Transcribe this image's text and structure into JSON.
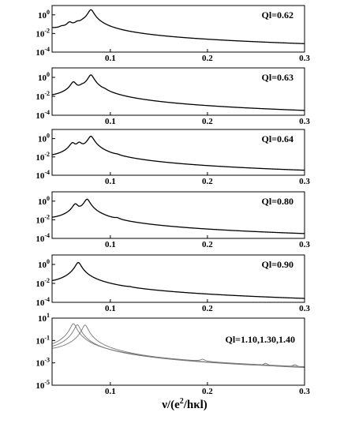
{
  "chart_data": [
    {
      "type": "line",
      "annotation": "Ql=0.62",
      "log_y": true,
      "xlim": [
        0.04,
        0.3
      ],
      "ylim": [
        0.0001,
        10
      ],
      "x_ticks": [
        0.1,
        0.2,
        0.3
      ],
      "x_tick_labels": [
        "0.1",
        "0.2",
        "0.3"
      ],
      "y_ticks": [
        1,
        0.01,
        0.0001
      ],
      "y_tick_labels": [
        [
          "10",
          "0"
        ],
        [
          "10",
          "-2"
        ],
        [
          "10",
          "-4"
        ]
      ],
      "series": [
        {
          "color": "#000000",
          "background": 0.012,
          "peaks": [
            {
              "x": 0.05,
              "height": 0.015
            },
            {
              "x": 0.058,
              "height": 0.11
            },
            {
              "x": 0.066,
              "height": 0.08
            },
            {
              "x": 0.072,
              "height": 0.05
            },
            {
              "x": 0.08,
              "height": 3.5
            }
          ]
        }
      ]
    },
    {
      "type": "line",
      "annotation": "Ql=0.63",
      "log_y": true,
      "xlim": [
        0.04,
        0.3
      ],
      "ylim": [
        0.0001,
        10
      ],
      "x_ticks": [
        0.1,
        0.2,
        0.3
      ],
      "x_tick_labels": [
        "0.1",
        "0.2",
        "0.3"
      ],
      "y_ticks": [
        1,
        0.01,
        0.0001
      ],
      "y_tick_labels": [
        [
          "10",
          "0"
        ],
        [
          "10",
          "-2"
        ],
        [
          "10",
          "-4"
        ]
      ],
      "series": [
        {
          "color": "#000000",
          "background": 0.0012,
          "peaks": [
            {
              "x": 0.062,
              "height": 0.3
            },
            {
              "x": 0.071,
              "height": 0.055
            },
            {
              "x": 0.08,
              "height": 1.8
            },
            {
              "x": 0.094,
              "height": 0.01
            }
          ]
        }
      ]
    },
    {
      "type": "line",
      "annotation": "Ql=0.64",
      "log_y": true,
      "xlim": [
        0.04,
        0.3
      ],
      "ylim": [
        0.0001,
        10
      ],
      "x_ticks": [
        0.1,
        0.2,
        0.3
      ],
      "x_tick_labels": [
        "0.1",
        "0.2",
        "0.3"
      ],
      "y_ticks": [
        1,
        0.01,
        0.0001
      ],
      "y_tick_labels": [
        [
          "10",
          "0"
        ],
        [
          "10",
          "-2"
        ],
        [
          "10",
          "-4"
        ]
      ],
      "series": [
        {
          "color": "#000000",
          "background": 0.0012,
          "peaks": [
            {
              "x": 0.061,
              "height": 0.3
            },
            {
              "x": 0.068,
              "height": 0.3
            },
            {
              "x": 0.08,
              "height": 1.8
            },
            {
              "x": 0.107,
              "height": 0.0025
            }
          ]
        }
      ]
    },
    {
      "type": "line",
      "annotation": "Ql=0.80",
      "log_y": true,
      "xlim": [
        0.04,
        0.3
      ],
      "ylim": [
        0.0001,
        10
      ],
      "x_ticks": [
        0.1,
        0.2,
        0.3
      ],
      "x_tick_labels": [
        "0.1",
        "0.2",
        "0.3"
      ],
      "y_ticks": [
        1,
        0.01,
        0.0001
      ],
      "y_tick_labels": [
        [
          "10",
          "0"
        ],
        [
          "10",
          "-2"
        ],
        [
          "10",
          "-4"
        ]
      ],
      "series": [
        {
          "color": "#000000",
          "background": 0.0025,
          "peaks": [
            {
              "x": 0.064,
              "height": 0.45
            },
            {
              "x": 0.076,
              "height": 1.6
            },
            {
              "x": 0.107,
              "height": 0.004
            }
          ]
        }
      ]
    },
    {
      "type": "line",
      "annotation": "Ql=0.90",
      "log_y": true,
      "xlim": [
        0.04,
        0.3
      ],
      "ylim": [
        0.0001,
        10
      ],
      "x_ticks": [
        0.1,
        0.2,
        0.3
      ],
      "x_tick_labels": [
        "0.1",
        "0.2",
        "0.3"
      ],
      "y_ticks": [
        1,
        0.01,
        0.0001
      ],
      "y_tick_labels": [
        [
          "10",
          "0"
        ],
        [
          "10",
          "-2"
        ],
        [
          "10",
          "-4"
        ]
      ],
      "series": [
        {
          "color": "#000000",
          "background": 0.0025,
          "peaks": [
            {
              "x": 0.067,
              "height": 1.6
            },
            {
              "x": 0.12,
              "height": 0.0004
            }
          ]
        }
      ]
    },
    {
      "type": "line",
      "annotation": "Ql=1.10,1.30,1.40",
      "log_y": true,
      "xlim": [
        0.04,
        0.3
      ],
      "ylim": [
        1e-05,
        10
      ],
      "x_ticks": [
        0.1,
        0.2,
        0.3
      ],
      "x_tick_labels": [
        "0.1",
        "0.2",
        "0.3"
      ],
      "y_ticks": [
        10,
        0.1,
        0.001,
        1e-05
      ],
      "y_tick_labels": [
        [
          "10",
          "1"
        ],
        [
          "10",
          "-1"
        ],
        [
          "10",
          "-3"
        ],
        [
          "10",
          "-5"
        ]
      ],
      "xlabel_parts": [
        "ν/(e",
        "2",
        "/hκl)"
      ],
      "series": [
        {
          "color": "#777777",
          "background": 0.003,
          "peaks": [
            {
              "x": 0.062,
              "height": 3.2
            },
            {
              "x": 0.195,
              "height": 0.0007
            }
          ]
        },
        {
          "color": "#777777",
          "background": 0.003,
          "peaks": [
            {
              "x": 0.066,
              "height": 2.5
            },
            {
              "x": 0.26,
              "height": 0.00035
            }
          ]
        },
        {
          "color": "#777777",
          "background": 0.003,
          "peaks": [
            {
              "x": 0.074,
              "height": 2.4
            },
            {
              "x": 0.29,
              "height": 0.00025
            }
          ]
        }
      ]
    }
  ]
}
